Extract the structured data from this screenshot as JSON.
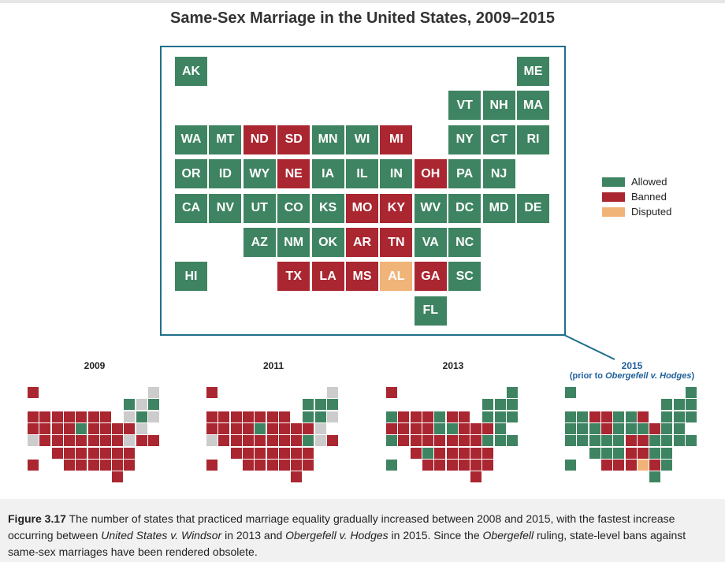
{
  "title": "Same-Sex Marriage in the United States, 2009–2015",
  "colors": {
    "allowed": "#3f8462",
    "banned": "#aa2630",
    "disputed": "#f0b479",
    "unknown": "#cccccc",
    "frame": "#1f6f8b"
  },
  "legend": [
    {
      "label": "Allowed",
      "status": "allowed"
    },
    {
      "label": "Banned",
      "status": "banned"
    },
    {
      "label": "Disputed",
      "status": "disputed"
    }
  ],
  "states": [
    {
      "abbr": "AK",
      "row": 0,
      "col": 0
    },
    {
      "abbr": "ME",
      "row": 0,
      "col": 10
    },
    {
      "abbr": "VT",
      "row": 1,
      "col": 8
    },
    {
      "abbr": "NH",
      "row": 1,
      "col": 9
    },
    {
      "abbr": "MA",
      "row": 1,
      "col": 10
    },
    {
      "abbr": "WA",
      "row": 2,
      "col": 0
    },
    {
      "abbr": "MT",
      "row": 2,
      "col": 1
    },
    {
      "abbr": "ND",
      "row": 2,
      "col": 2
    },
    {
      "abbr": "SD",
      "row": 2,
      "col": 3
    },
    {
      "abbr": "MN",
      "row": 2,
      "col": 4
    },
    {
      "abbr": "WI",
      "row": 2,
      "col": 5
    },
    {
      "abbr": "MI",
      "row": 2,
      "col": 6
    },
    {
      "abbr": "NY",
      "row": 2,
      "col": 8
    },
    {
      "abbr": "CT",
      "row": 2,
      "col": 9
    },
    {
      "abbr": "RI",
      "row": 2,
      "col": 10
    },
    {
      "abbr": "OR",
      "row": 3,
      "col": 0
    },
    {
      "abbr": "ID",
      "row": 3,
      "col": 1
    },
    {
      "abbr": "WY",
      "row": 3,
      "col": 2
    },
    {
      "abbr": "NE",
      "row": 3,
      "col": 3
    },
    {
      "abbr": "IA",
      "row": 3,
      "col": 4
    },
    {
      "abbr": "IL",
      "row": 3,
      "col": 5
    },
    {
      "abbr": "IN",
      "row": 3,
      "col": 6
    },
    {
      "abbr": "OH",
      "row": 3,
      "col": 7
    },
    {
      "abbr": "PA",
      "row": 3,
      "col": 8
    },
    {
      "abbr": "NJ",
      "row": 3,
      "col": 9
    },
    {
      "abbr": "CA",
      "row": 4,
      "col": 0
    },
    {
      "abbr": "NV",
      "row": 4,
      "col": 1
    },
    {
      "abbr": "UT",
      "row": 4,
      "col": 2
    },
    {
      "abbr": "CO",
      "row": 4,
      "col": 3
    },
    {
      "abbr": "KS",
      "row": 4,
      "col": 4
    },
    {
      "abbr": "MO",
      "row": 4,
      "col": 5
    },
    {
      "abbr": "KY",
      "row": 4,
      "col": 6
    },
    {
      "abbr": "WV",
      "row": 4,
      "col": 7
    },
    {
      "abbr": "DC",
      "row": 4,
      "col": 8
    },
    {
      "abbr": "MD",
      "row": 4,
      "col": 9
    },
    {
      "abbr": "DE",
      "row": 4,
      "col": 10
    },
    {
      "abbr": "AZ",
      "row": 5,
      "col": 2
    },
    {
      "abbr": "NM",
      "row": 5,
      "col": 3
    },
    {
      "abbr": "OK",
      "row": 5,
      "col": 4
    },
    {
      "abbr": "AR",
      "row": 5,
      "col": 5
    },
    {
      "abbr": "TN",
      "row": 5,
      "col": 6
    },
    {
      "abbr": "VA",
      "row": 5,
      "col": 7
    },
    {
      "abbr": "NC",
      "row": 5,
      "col": 8
    },
    {
      "abbr": "HI",
      "row": 6,
      "col": 0
    },
    {
      "abbr": "TX",
      "row": 6,
      "col": 3
    },
    {
      "abbr": "LA",
      "row": 6,
      "col": 4
    },
    {
      "abbr": "MS",
      "row": 6,
      "col": 5
    },
    {
      "abbr": "AL",
      "row": 6,
      "col": 6
    },
    {
      "abbr": "GA",
      "row": 6,
      "col": 7
    },
    {
      "abbr": "SC",
      "row": 6,
      "col": 8
    },
    {
      "abbr": "FL",
      "row": 7,
      "col": 7
    }
  ],
  "status_by_year": {
    "2009": {
      "allowed": [
        "IA",
        "VT",
        "CT",
        "MA"
      ],
      "unknown": [
        "ME",
        "NH",
        "NY",
        "RI",
        "NJ",
        "DC",
        "CA"
      ]
    },
    "2011": {
      "allowed": [
        "IA",
        "VT",
        "NH",
        "CT",
        "MA",
        "NY",
        "DC"
      ],
      "unknown": [
        "ME",
        "RI",
        "NJ",
        "MD",
        "CA"
      ]
    },
    "2013": {
      "allowed": [
        "ME",
        "VT",
        "NH",
        "MA",
        "WA",
        "MN",
        "NY",
        "CT",
        "RI",
        "IA",
        "IL",
        "NJ",
        "CA",
        "DC",
        "MD",
        "DE",
        "NM",
        "HI"
      ],
      "unknown": []
    },
    "2015": {
      "banned": [
        "ND",
        "SD",
        "MI",
        "NE",
        "OH",
        "MO",
        "KY",
        "AR",
        "TN",
        "TX",
        "LA",
        "MS",
        "GA"
      ],
      "disputed": [
        "AL"
      ],
      "unknown": []
    }
  },
  "mini_maps": [
    {
      "year": "2009",
      "label": "2009",
      "sublabel": ""
    },
    {
      "year": "2011",
      "label": "2011",
      "sublabel": ""
    },
    {
      "year": "2013",
      "label": "2013",
      "sublabel": ""
    },
    {
      "year": "2015",
      "label": "2015",
      "sublabel_parts": [
        "(prior to ",
        "Obergefell v. Hodges",
        ")"
      ]
    }
  ],
  "caption": {
    "lead": "Figure 3.17",
    "parts": [
      {
        "text": " The number of states that practiced marriage equality gradually increased between 2008 and 2015, with the fastest increase occurring between ",
        "italic": false
      },
      {
        "text": "United States v. Windsor",
        "italic": true
      },
      {
        "text": " in 2013 and ",
        "italic": false
      },
      {
        "text": "Obergefell v. Hodges",
        "italic": true
      },
      {
        "text": " in 2015. Since the ",
        "italic": false
      },
      {
        "text": "Obergefell",
        "italic": true
      },
      {
        "text": " ruling, state-level bans against same-sex marriages have been rendered obsolete.",
        "italic": false
      }
    ]
  }
}
